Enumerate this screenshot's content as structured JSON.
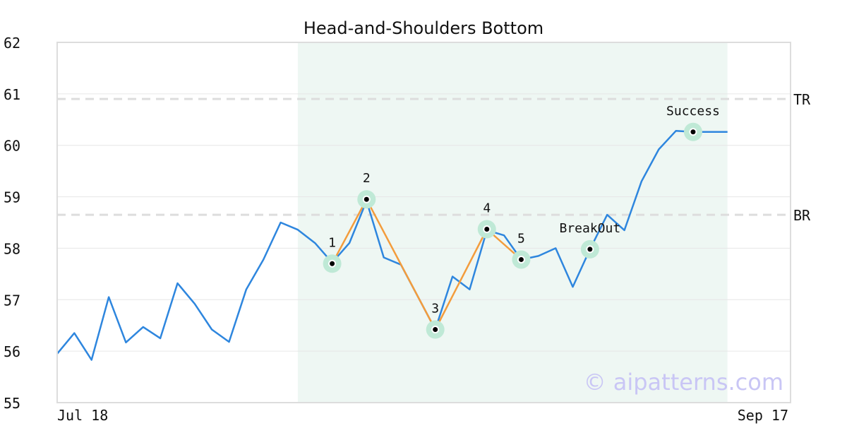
{
  "chart_data": {
    "type": "line",
    "title": "Head-and-Shoulders Bottom",
    "ylim": [
      55,
      62
    ],
    "y_ticks": [
      "55",
      "56",
      "57",
      "58",
      "59",
      "60",
      "61",
      "62"
    ],
    "x_labels": [
      "Jul 18",
      "Sep 17"
    ],
    "grid": true,
    "colors": {
      "price": "#2e86de",
      "pattern": "#f39c3c",
      "highlight_band": "#eef7f3",
      "marker_halo": "#bfe9d6",
      "ref_line": "#dddddd",
      "watermark": "#c9c6f5"
    },
    "series": [
      {
        "values": [
          55.95,
          56.35,
          55.83,
          57.05,
          56.17,
          56.47,
          56.25,
          57.32,
          56.92,
          56.42,
          56.18,
          57.2,
          57.78,
          58.5,
          58.36,
          58.1,
          57.72,
          58.1,
          58.92,
          57.82,
          57.68,
          57.05,
          56.42,
          57.45,
          57.2,
          58.35,
          58.25,
          57.78,
          57.85,
          58.0,
          57.25,
          57.98,
          58.65,
          58.35,
          59.3,
          59.92,
          60.28,
          60.26,
          60.26,
          60.26
        ]
      }
    ],
    "highlight_range": {
      "start_index": 14,
      "end_index": 39
    },
    "reference_lines": [
      {
        "label": "TR",
        "value": 60.9
      },
      {
        "label": "BR",
        "value": 58.65
      }
    ],
    "pattern_points": [
      {
        "label": "1",
        "index": 16,
        "value": 57.7
      },
      {
        "label": "2",
        "index": 18,
        "value": 58.95
      },
      {
        "label": "3",
        "index": 22,
        "value": 56.42
      },
      {
        "label": "4",
        "index": 25,
        "value": 58.37
      },
      {
        "label": "5",
        "index": 27,
        "value": 57.78
      }
    ],
    "annotations": [
      {
        "label": "BreakOut",
        "index": 31,
        "value": 57.98
      },
      {
        "label": "Success",
        "index": 37,
        "value": 60.26
      }
    ],
    "watermark": "© aipatterns.com"
  }
}
